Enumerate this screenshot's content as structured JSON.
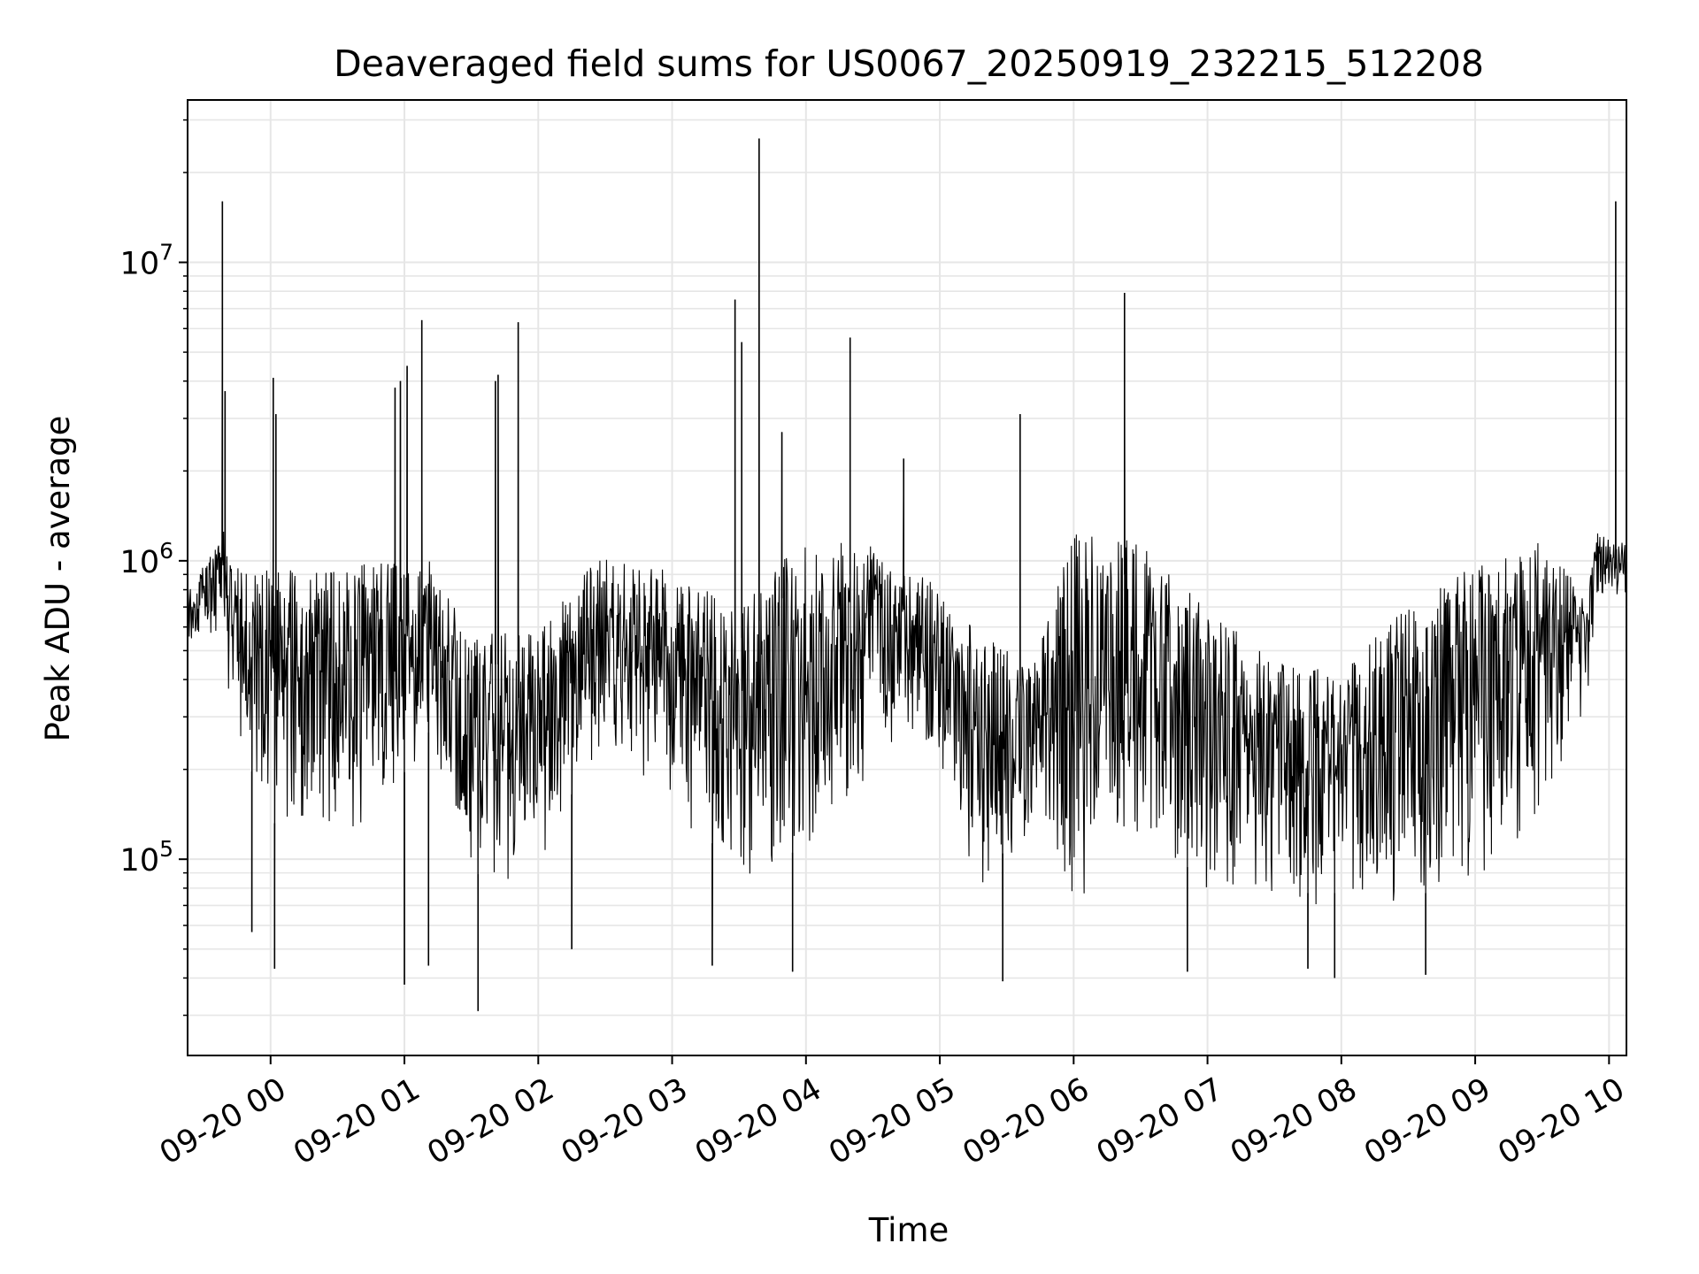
{
  "chart_data": {
    "type": "line",
    "title": "Deaveraged field sums for US0067_20250919_232215_512208",
    "xlabel": "Time",
    "ylabel": "Peak ADU - average",
    "yscale": "log",
    "ylim": [
      22000,
      35000000
    ],
    "xlim_hours_from_0920_00": [
      -0.62,
      10.13
    ],
    "grid": true,
    "line_color": "#000000",
    "grid_color": "#e6e6e6",
    "x_ticks": [
      {
        "hour": 0,
        "label": "09-20 00"
      },
      {
        "hour": 1,
        "label": "09-20 01"
      },
      {
        "hour": 2,
        "label": "09-20 02"
      },
      {
        "hour": 3,
        "label": "09-20 03"
      },
      {
        "hour": 4,
        "label": "09-20 04"
      },
      {
        "hour": 5,
        "label": "09-20 05"
      },
      {
        "hour": 6,
        "label": "09-20 06"
      },
      {
        "hour": 7,
        "label": "09-20 07"
      },
      {
        "hour": 8,
        "label": "09-20 08"
      },
      {
        "hour": 9,
        "label": "09-20 09"
      },
      {
        "hour": 10,
        "label": "09-20 10"
      }
    ],
    "y_ticks": [
      {
        "value": 100000,
        "base": "10",
        "exp": "5"
      },
      {
        "value": 1000000,
        "base": "10",
        "exp": "6"
      },
      {
        "value": 10000000,
        "base": "10",
        "exp": "7"
      }
    ],
    "envelope": [
      {
        "t": -0.62,
        "lo": 500000,
        "hi": 800000
      },
      {
        "t": -0.35,
        "lo": 600000,
        "hi": 1200000
      },
      {
        "t": -0.32,
        "lo": 300000,
        "hi": 900000
      },
      {
        "t": 0.0,
        "lo": 120000,
        "hi": 800000
      },
      {
        "t": 0.5,
        "lo": 120000,
        "hi": 800000
      },
      {
        "t": 0.9,
        "lo": 150000,
        "hi": 900000
      },
      {
        "t": 1.2,
        "lo": 250000,
        "hi": 900000
      },
      {
        "t": 1.5,
        "lo": 80000,
        "hi": 500000
      },
      {
        "t": 2.0,
        "lo": 90000,
        "hi": 500000
      },
      {
        "t": 2.5,
        "lo": 250000,
        "hi": 1000000
      },
      {
        "t": 3.0,
        "lo": 150000,
        "hi": 800000
      },
      {
        "t": 3.5,
        "lo": 80000,
        "hi": 600000
      },
      {
        "t": 4.0,
        "lo": 100000,
        "hi": 1000000
      },
      {
        "t": 4.5,
        "lo": 200000,
        "hi": 1000000
      },
      {
        "t": 4.9,
        "lo": 250000,
        "hi": 800000
      },
      {
        "t": 5.3,
        "lo": 80000,
        "hi": 500000
      },
      {
        "t": 5.7,
        "lo": 120000,
        "hi": 400000
      },
      {
        "t": 6.0,
        "lo": 70000,
        "hi": 1000000
      },
      {
        "t": 6.5,
        "lo": 100000,
        "hi": 1000000
      },
      {
        "t": 7.0,
        "lo": 80000,
        "hi": 600000
      },
      {
        "t": 7.5,
        "lo": 70000,
        "hi": 400000
      },
      {
        "t": 8.0,
        "lo": 70000,
        "hi": 400000
      },
      {
        "t": 8.5,
        "lo": 70000,
        "hi": 600000
      },
      {
        "t": 9.0,
        "lo": 70000,
        "hi": 800000
      },
      {
        "t": 9.5,
        "lo": 150000,
        "hi": 1000000
      },
      {
        "t": 9.84,
        "lo": 300000,
        "hi": 700000
      },
      {
        "t": 9.9,
        "lo": 700000,
        "hi": 1200000
      },
      {
        "t": 10.13,
        "lo": 700000,
        "hi": 1100000
      }
    ],
    "spikes": [
      {
        "t": -0.36,
        "value": 16000000
      },
      {
        "t": -0.34,
        "value": 3700000
      },
      {
        "t": 0.02,
        "value": 4100000
      },
      {
        "t": 0.04,
        "value": 3100000
      },
      {
        "t": 0.93,
        "value": 3800000
      },
      {
        "t": 0.97,
        "value": 4000000
      },
      {
        "t": 1.02,
        "value": 4500000
      },
      {
        "t": 1.13,
        "value": 6400000
      },
      {
        "t": 1.68,
        "value": 4000000
      },
      {
        "t": 1.7,
        "value": 4200000
      },
      {
        "t": 1.85,
        "value": 6300000
      },
      {
        "t": 3.47,
        "value": 7500000
      },
      {
        "t": 3.52,
        "value": 5400000
      },
      {
        "t": 3.65,
        "value": 26000000
      },
      {
        "t": 3.82,
        "value": 2700000
      },
      {
        "t": 4.33,
        "value": 5600000
      },
      {
        "t": 4.73,
        "value": 2200000
      },
      {
        "t": 5.6,
        "value": 3100000
      },
      {
        "t": 6.38,
        "value": 7900000
      },
      {
        "t": 10.05,
        "value": 16000000
      }
    ],
    "dips": [
      {
        "t": -0.14,
        "value": 57000
      },
      {
        "t": 0.03,
        "value": 43000
      },
      {
        "t": 1.0,
        "value": 38000
      },
      {
        "t": 1.18,
        "value": 44000
      },
      {
        "t": 1.55,
        "value": 31000
      },
      {
        "t": 2.25,
        "value": 50000
      },
      {
        "t": 3.3,
        "value": 44000
      },
      {
        "t": 3.9,
        "value": 42000
      },
      {
        "t": 5.47,
        "value": 39000
      },
      {
        "t": 6.85,
        "value": 42000
      },
      {
        "t": 7.75,
        "value": 43000
      },
      {
        "t": 7.95,
        "value": 40000
      },
      {
        "t": 8.63,
        "value": 41000
      }
    ]
  }
}
